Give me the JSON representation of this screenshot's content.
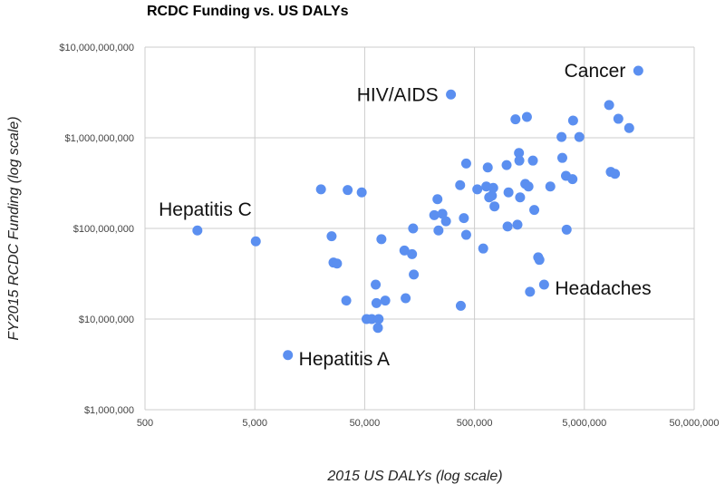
{
  "chart_data": {
    "type": "scatter",
    "title": "RCDC Funding vs. US DALYs",
    "xlabel": "2015 US DALYs (log scale)",
    "ylabel": "FY2015 RCDC Funding (log scale)",
    "x_scale": "log",
    "y_scale": "log",
    "xlim": [
      500,
      50000000
    ],
    "ylim": [
      1000000,
      10000000000
    ],
    "x_ticks": [
      500,
      5000,
      50000,
      500000,
      5000000,
      50000000
    ],
    "x_tick_labels": [
      "500",
      "5,000",
      "50,000",
      "500,000",
      "5,000,000",
      "50,000,000"
    ],
    "y_ticks": [
      1000000,
      10000000,
      100000000,
      1000000000,
      10000000000
    ],
    "y_tick_labels": [
      "$1,000,000",
      "$10,000,000",
      "$100,000,000",
      "$1,000,000,000",
      "$10,000,000,000"
    ],
    "grid": true,
    "color": "#5b8ff0",
    "points": [
      {
        "x": 1500,
        "y": 95000000,
        "label": "Hepatitis C"
      },
      {
        "x": 5100,
        "y": 72000000
      },
      {
        "x": 10000,
        "y": 4000000,
        "label": "Hepatitis A"
      },
      {
        "x": 20000,
        "y": 270000000
      },
      {
        "x": 25000,
        "y": 82000000
      },
      {
        "x": 26000,
        "y": 42000000
      },
      {
        "x": 28000,
        "y": 41000000
      },
      {
        "x": 34000,
        "y": 16000000
      },
      {
        "x": 35000,
        "y": 265000000
      },
      {
        "x": 47000,
        "y": 250000000
      },
      {
        "x": 52000,
        "y": 10000000
      },
      {
        "x": 58000,
        "y": 10000000
      },
      {
        "x": 63000,
        "y": 24000000
      },
      {
        "x": 64000,
        "y": 15000000
      },
      {
        "x": 66000,
        "y": 8000000
      },
      {
        "x": 67000,
        "y": 10000000
      },
      {
        "x": 71000,
        "y": 76000000
      },
      {
        "x": 77000,
        "y": 16000000
      },
      {
        "x": 115000,
        "y": 57000000
      },
      {
        "x": 118000,
        "y": 17000000
      },
      {
        "x": 135000,
        "y": 52000000
      },
      {
        "x": 138000,
        "y": 100000000
      },
      {
        "x": 140000,
        "y": 31000000
      },
      {
        "x": 215000,
        "y": 140000000
      },
      {
        "x": 230000,
        "y": 210000000
      },
      {
        "x": 235000,
        "y": 95000000
      },
      {
        "x": 255000,
        "y": 145000000
      },
      {
        "x": 275000,
        "y": 120000000
      },
      {
        "x": 305000,
        "y": 3000000000,
        "label": "HIV/AIDS"
      },
      {
        "x": 370000,
        "y": 300000000
      },
      {
        "x": 375000,
        "y": 14000000
      },
      {
        "x": 400000,
        "y": 130000000
      },
      {
        "x": 420000,
        "y": 520000000
      },
      {
        "x": 420000,
        "y": 85000000
      },
      {
        "x": 530000,
        "y": 270000000
      },
      {
        "x": 600000,
        "y": 60000000
      },
      {
        "x": 640000,
        "y": 290000000
      },
      {
        "x": 660000,
        "y": 470000000
      },
      {
        "x": 680000,
        "y": 220000000
      },
      {
        "x": 720000,
        "y": 230000000
      },
      {
        "x": 740000,
        "y": 280000000
      },
      {
        "x": 760000,
        "y": 175000000
      },
      {
        "x": 980000,
        "y": 500000000
      },
      {
        "x": 1000000,
        "y": 105000000
      },
      {
        "x": 1020000,
        "y": 250000000
      },
      {
        "x": 1180000,
        "y": 1600000000
      },
      {
        "x": 1230000,
        "y": 110000000
      },
      {
        "x": 1270000,
        "y": 680000000
      },
      {
        "x": 1280000,
        "y": 560000000
      },
      {
        "x": 1300000,
        "y": 220000000
      },
      {
        "x": 1450000,
        "y": 310000000
      },
      {
        "x": 1500000,
        "y": 1700000000
      },
      {
        "x": 1550000,
        "y": 290000000
      },
      {
        "x": 1600000,
        "y": 20000000
      },
      {
        "x": 1700000,
        "y": 560000000
      },
      {
        "x": 1750000,
        "y": 160000000
      },
      {
        "x": 1900000,
        "y": 48000000
      },
      {
        "x": 1950000,
        "y": 45000000
      },
      {
        "x": 2150000,
        "y": 24000000,
        "label": "Headaches"
      },
      {
        "x": 2450000,
        "y": 290000000
      },
      {
        "x": 3100000,
        "y": 1020000000
      },
      {
        "x": 3150000,
        "y": 600000000
      },
      {
        "x": 3400000,
        "y": 380000000
      },
      {
        "x": 3450000,
        "y": 97000000
      },
      {
        "x": 3900000,
        "y": 350000000
      },
      {
        "x": 3950000,
        "y": 1550000000
      },
      {
        "x": 4500000,
        "y": 1020000000
      },
      {
        "x": 8400000,
        "y": 2300000000
      },
      {
        "x": 8700000,
        "y": 420000000
      },
      {
        "x": 9500000,
        "y": 400000000
      },
      {
        "x": 10200000,
        "y": 1620000000
      },
      {
        "x": 12800000,
        "y": 1280000000
      },
      {
        "x": 15500000,
        "y": 5500000000,
        "label": "Cancer"
      }
    ]
  }
}
